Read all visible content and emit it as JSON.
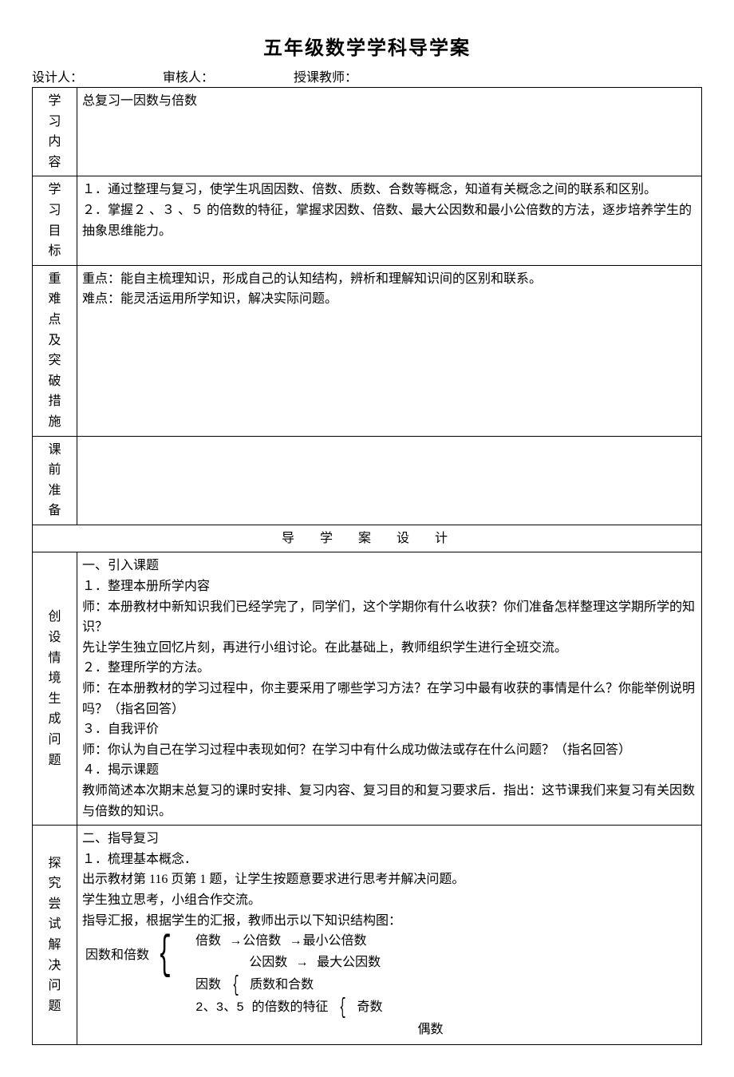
{
  "title": "五年级数学学科导学案",
  "meta": {
    "designer_label": "设计人：",
    "reviewer_label": "审核人：",
    "teacher_label": "授课教师："
  },
  "rows": {
    "r1_label": "学习内容",
    "r1_content": "总复习一因数与倍数",
    "r2_label": "学习目标",
    "r2_line1": "１．通过整理与复习，使学生巩固因数、倍数、质数、合数等概念，知道有关概念之间的联系和区别。",
    "r2_line2": "２．掌握２ 、３ 、５ 的倍数的特征，掌握求因数、倍数、最大公因数和最小公倍数的方法，逐步培养学生的抽象思维能力。",
    "r3_label": "重难点及突破措施",
    "r3_line1": "重点：能自主梳理知识，形成自己的认知结构，辨析和理解知识间的区别和联系。",
    "r3_line2": "难点：能灵活运用所学知识，解决实际问题。",
    "r4_label": "课前准备",
    "section_header": "导 学 案 设 计",
    "r5_label": "创设情境生成问题",
    "r5_h": "一、引入课题",
    "r5_p1": "１．整理本册所学内容",
    "r5_p2": "师：本册教材中新知识我们已经学完了，同学们，这个学期你有什么收获？你们准备怎样整理这学期所学的知识？",
    "r5_p3": "先让学生独立回忆片刻，再进行小组讨论。在此基础上，教师组织学生进行全班交流。",
    "r5_p4": "２．整理所学的方法。",
    "r5_p5": "师：在本册教材的学习过程中，你主要采用了哪些学习方法？在学习中最有收获的事情是什么？你能举例说明吗？（指名回答）",
    "r5_p6": "３．自我评价",
    "r5_p7": "师：你认为自己在学习过程中表现如何？在学习中有什么成功做法或存在什么问题？（指名回答）",
    "r5_p8": "４．揭示课题",
    "r5_p9": "教师简述本次期末总复习的课时安排、复习内容、复习目的和复习要求后．指出：这节课我们来复习有关因数与倍数的知识。",
    "r6_label": "探究尝试解决问题",
    "r6_h": "二、指导复习",
    "r6_p1": "１．梳理基本概念．",
    "r6_p2": "出示教材第 116 页第 1 题，让学生按题意要求进行思考并解决问题。",
    "r6_p3": "学生独立思考，小组合作交流。",
    "r6_p4": "指导汇报，根据学生的汇报，教师出示以下知识结构图："
  },
  "diagram": {
    "root": "因数和倍数",
    "n1": "倍数",
    "n2": "公倍数",
    "n3": "最小公倍数",
    "n4": "公因数",
    "n5": "最大公因数",
    "n6": "因数",
    "n7": "质数和合数",
    "n8": "2、3、5 的倍数的特征",
    "n9": "奇数",
    "n10": "偶数",
    "arrow": "→"
  }
}
